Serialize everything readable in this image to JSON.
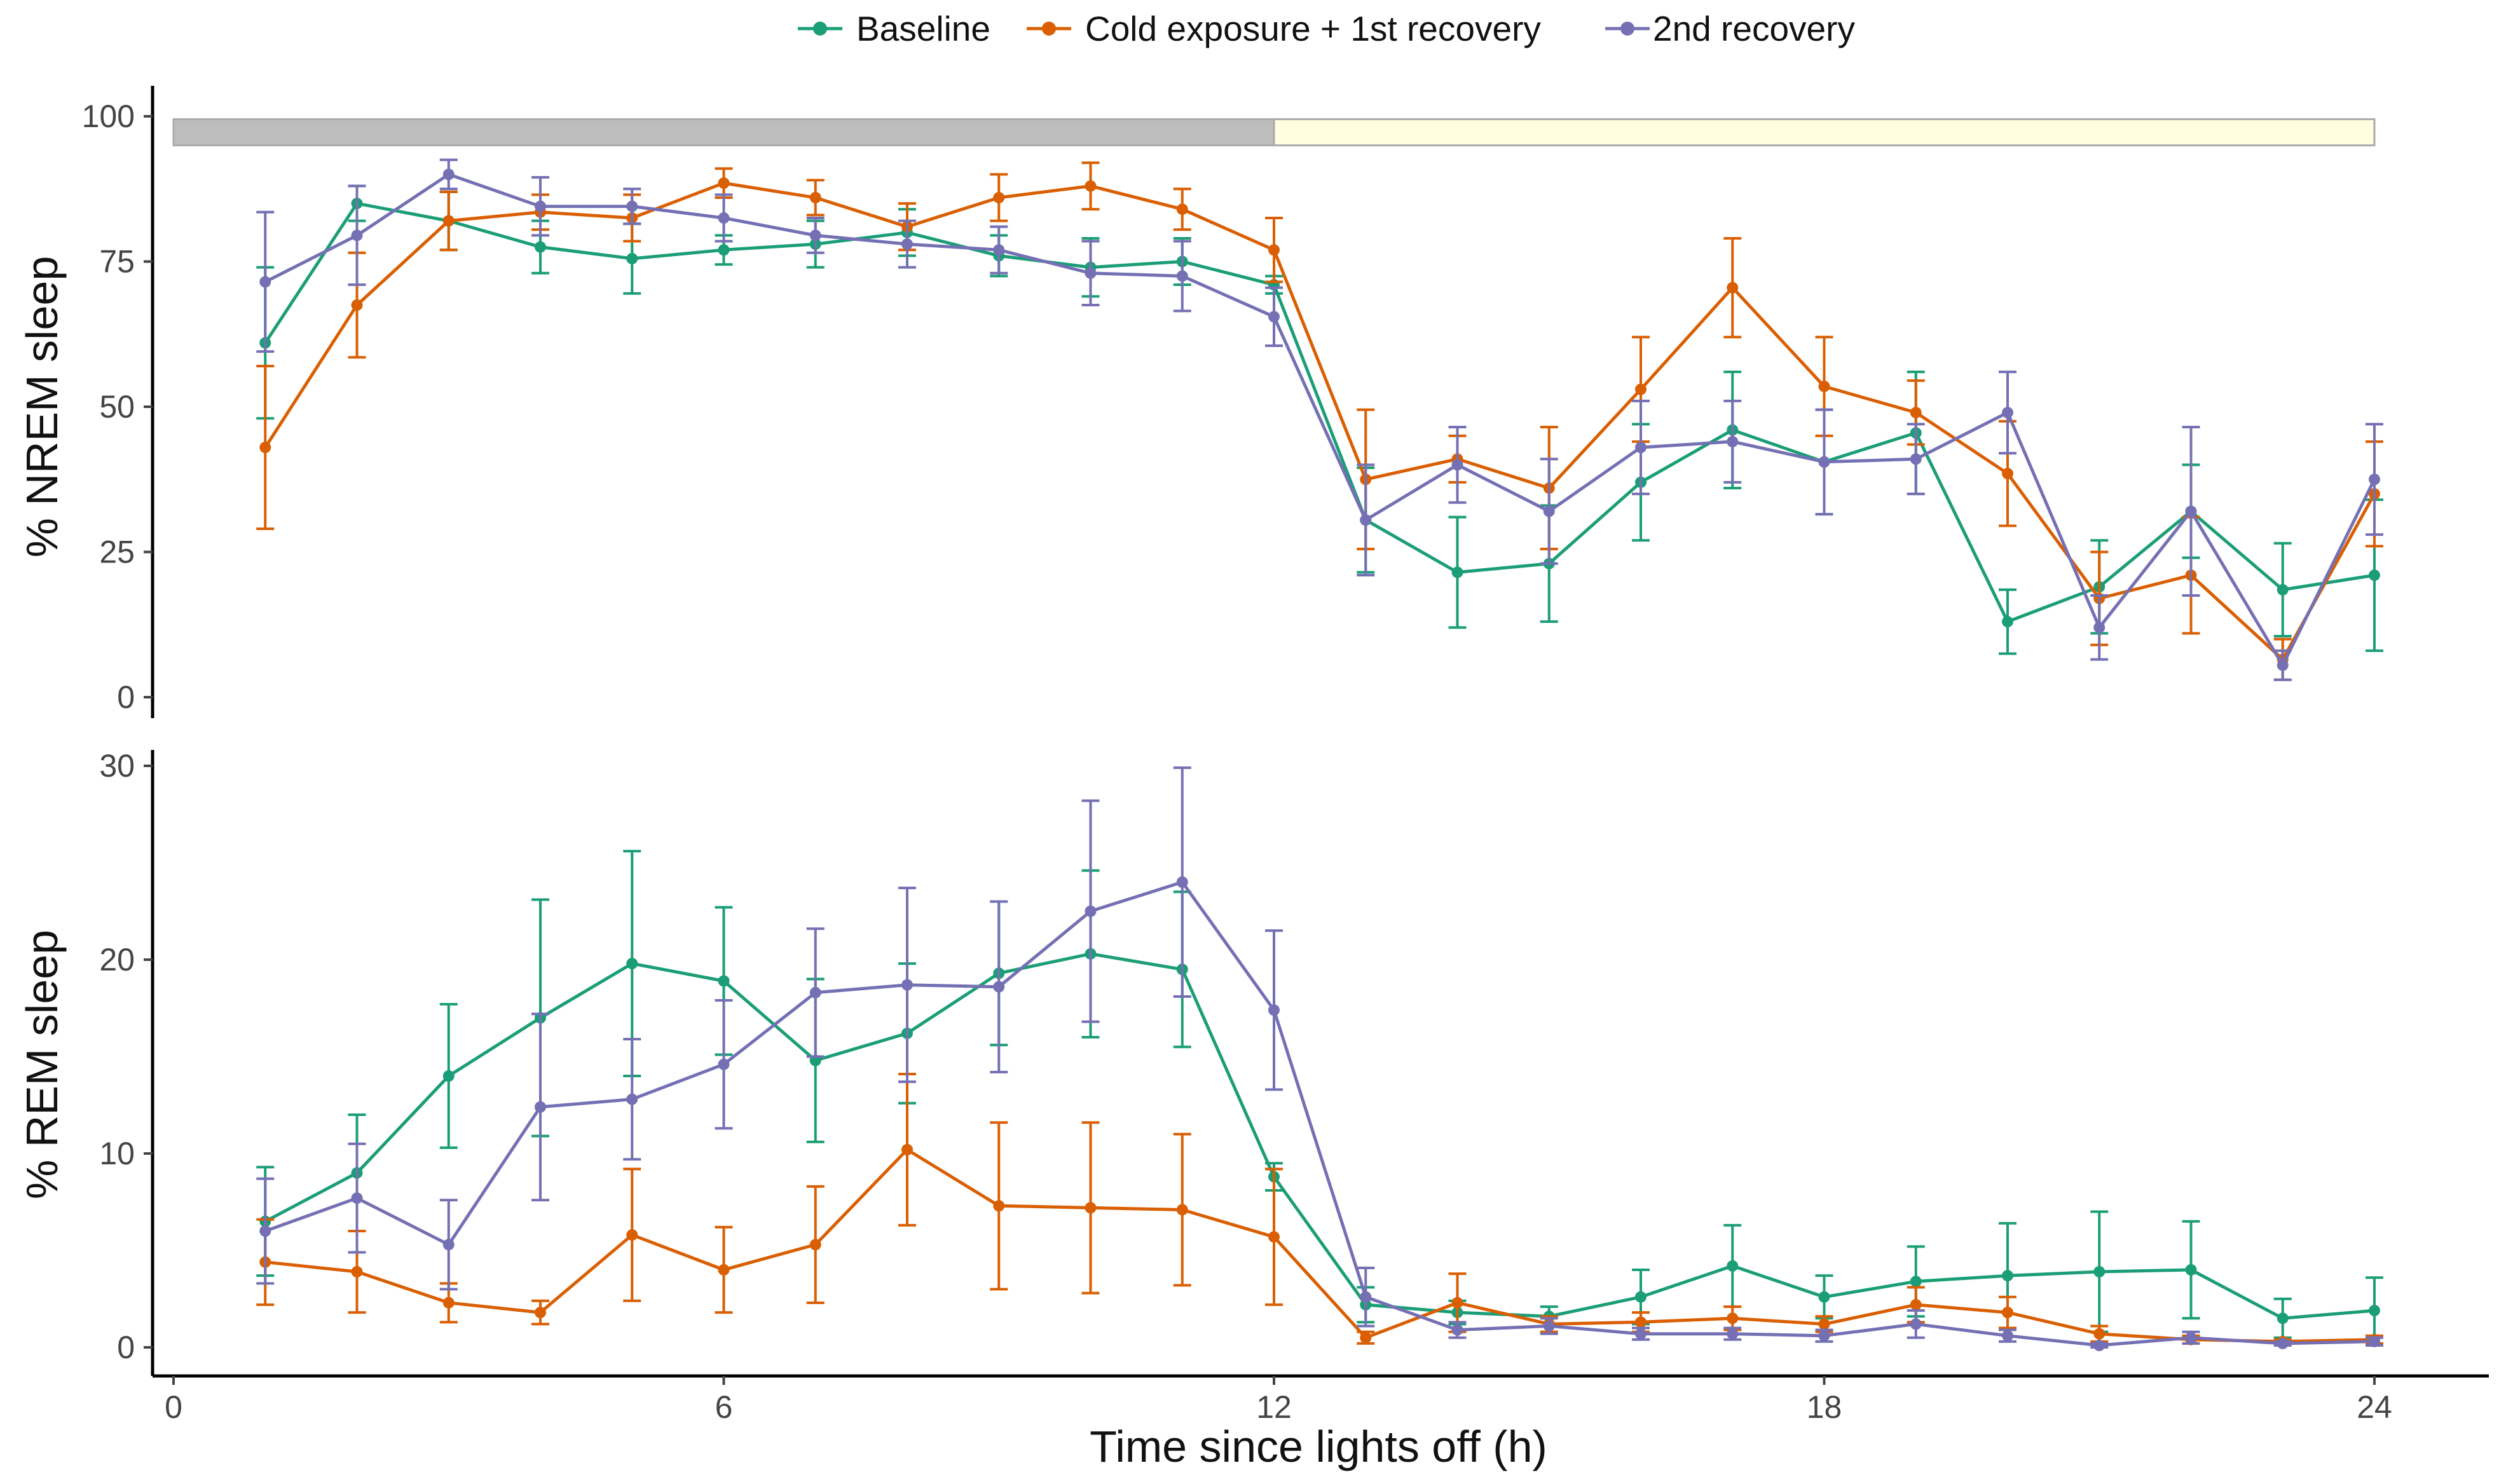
{
  "colors": {
    "baseline": "#1b9e77",
    "cold": "#d95f02",
    "recovery2": "#7570b3",
    "dark_bar": "#bdbdbd",
    "light_bar": "#ffffe0"
  },
  "legend": {
    "items": [
      {
        "key": "baseline",
        "label": "Baseline",
        "color": "#1b9e77"
      },
      {
        "key": "cold",
        "label": "Cold exposure + 1st recovery",
        "color": "#d95f02"
      },
      {
        "key": "recovery2",
        "label": "2nd recovery",
        "color": "#7570b3"
      }
    ]
  },
  "chart_data": [
    {
      "type": "line",
      "panel": "top",
      "ylabel": "% NREM sleep",
      "xlabel": "",
      "xlim": [
        0,
        24
      ],
      "ylim": [
        0,
        100
      ],
      "yticks": [
        0,
        25,
        50,
        75,
        100
      ],
      "xticks": [
        0,
        6,
        12,
        18,
        24
      ],
      "light_dark_bar": {
        "dark": [
          0,
          12
        ],
        "light": [
          12,
          24
        ]
      },
      "x": [
        1,
        2,
        3,
        4,
        5,
        6,
        7,
        8,
        9,
        10,
        11,
        12,
        13,
        14,
        15,
        16,
        17,
        18,
        19,
        20,
        21,
        22,
        23,
        24
      ],
      "series": [
        {
          "key": "baseline",
          "name": "Baseline",
          "values": [
            61,
            85,
            82,
            77.5,
            75.5,
            77,
            78,
            80,
            76,
            74,
            75,
            71,
            30.5,
            21.5,
            23,
            37,
            46,
            40.5,
            45.5,
            13,
            19,
            32,
            18.5,
            21
          ],
          "errors": [
            13,
            3,
            5,
            4.5,
            6,
            2.5,
            4,
            4,
            3.5,
            5,
            4,
            1.5,
            9,
            9.5,
            10,
            10,
            10,
            9,
            10.5,
            5.5,
            8,
            8,
            8,
            13
          ]
        },
        {
          "key": "cold",
          "name": "Cold exposure + 1st recovery",
          "values": [
            43,
            67.5,
            82,
            83.5,
            82.5,
            88.5,
            86,
            81,
            86,
            88,
            84,
            77,
            37.5,
            41,
            36,
            53,
            70.5,
            53.5,
            49,
            38.5,
            17,
            21,
            6.5,
            35
          ],
          "errors": [
            14,
            9,
            5,
            3,
            4,
            2.5,
            3,
            4,
            4,
            4,
            3.5,
            5.5,
            12,
            4,
            10.5,
            9,
            8.5,
            8.5,
            5.5,
            9,
            8,
            10,
            3.5,
            9
          ]
        },
        {
          "key": "recovery2",
          "name": "2nd recovery",
          "values": [
            71.5,
            79.5,
            90,
            84.5,
            84.5,
            82.5,
            79.5,
            78,
            77,
            73,
            72.5,
            65.5,
            30.5,
            40,
            32,
            43,
            44,
            40.5,
            41,
            49,
            12,
            32,
            5.5,
            37.5
          ],
          "errors": [
            12,
            8.5,
            2.5,
            5,
            3,
            4,
            3,
            4,
            4,
            5.5,
            6,
            5,
            9.5,
            6.5,
            9,
            8,
            7,
            9,
            6,
            7,
            5.5,
            14.5,
            2.5,
            9.5
          ]
        }
      ]
    },
    {
      "type": "line",
      "panel": "bottom",
      "ylabel": "% REM sleep",
      "xlabel": "Time since lights off (h)",
      "xlim": [
        0,
        24
      ],
      "ylim": [
        0,
        30
      ],
      "yticks": [
        0,
        10,
        20,
        30
      ],
      "xticks": [
        0,
        6,
        12,
        18,
        24
      ],
      "x": [
        1,
        2,
        3,
        4,
        5,
        6,
        7,
        8,
        9,
        10,
        11,
        12,
        13,
        14,
        15,
        16,
        17,
        18,
        19,
        20,
        21,
        22,
        23,
        24
      ],
      "series": [
        {
          "key": "baseline",
          "name": "Baseline",
          "values": [
            6.5,
            9,
            14,
            17,
            19.8,
            18.9,
            14.8,
            16.2,
            19.3,
            20.3,
            19.5,
            8.8,
            2.2,
            1.8,
            1.6,
            2.6,
            4.2,
            2.6,
            3.4,
            3.7,
            3.9,
            4,
            1.5,
            1.9
          ],
          "errors": [
            2.8,
            3,
            3.7,
            6.1,
            5.8,
            3.8,
            4.2,
            3.6,
            3.7,
            4.3,
            4,
            0.7,
            0.9,
            0.6,
            0.5,
            1.4,
            2.1,
            1.1,
            1.8,
            2.7,
            3.1,
            2.5,
            1,
            1.7
          ]
        },
        {
          "key": "cold",
          "name": "Cold exposure + 1st recovery",
          "values": [
            4.4,
            3.9,
            2.3,
            1.8,
            5.8,
            4,
            5.3,
            10.2,
            7.3,
            7.2,
            7.1,
            5.7,
            0.5,
            2.3,
            1.2,
            1.3,
            1.5,
            1.2,
            2.2,
            1.8,
            0.7,
            0.4,
            0.3,
            0.4
          ],
          "errors": [
            2.2,
            2.1,
            1,
            0.6,
            3.4,
            2.2,
            3,
            3.9,
            4.3,
            4.4,
            3.9,
            3.5,
            0.3,
            1.5,
            0.4,
            0.5,
            0.6,
            0.4,
            0.9,
            0.8,
            0.4,
            0.2,
            0.1,
            0.2
          ]
        },
        {
          "key": "recovery2",
          "name": "2nd recovery",
          "values": [
            6,
            7.7,
            5.3,
            12.4,
            12.8,
            14.6,
            18.3,
            18.7,
            18.6,
            22.5,
            24,
            17.4,
            2.6,
            0.9,
            1.1,
            0.7,
            0.7,
            0.6,
            1.2,
            0.6,
            0.1,
            0.5,
            0.2,
            0.3
          ],
          "errors": [
            2.7,
            2.8,
            2.3,
            4.8,
            3.1,
            3.3,
            3.3,
            5,
            4.4,
            5.7,
            5.9,
            4.1,
            1.5,
            0.4,
            0.4,
            0.3,
            0.3,
            0.3,
            0.7,
            0.3,
            0.1,
            0.3,
            0.1,
            0.2
          ]
        }
      ]
    }
  ]
}
